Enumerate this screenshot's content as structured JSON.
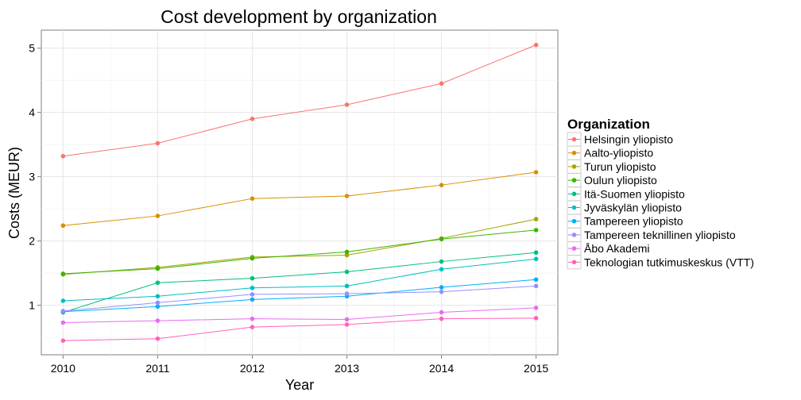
{
  "chart_data": {
    "type": "line",
    "title": "Cost development by organization",
    "xlabel": "Year",
    "ylabel": "Costs (MEUR)",
    "x": [
      2010,
      2011,
      2012,
      2013,
      2014,
      2015
    ],
    "xlim": [
      2009.77,
      2015.23
    ],
    "ylim": [
      0.23,
      5.28
    ],
    "yticks": [
      1,
      2,
      3,
      4,
      5
    ],
    "grid": true,
    "legend_title": "Organization",
    "legend_position": "right",
    "series": [
      {
        "name": "Helsingin yliopisto",
        "color": "#F8766D",
        "values": [
          3.32,
          3.52,
          3.9,
          4.12,
          4.45,
          5.05
        ]
      },
      {
        "name": "Aalto-yliopisto",
        "color": "#D89000",
        "values": [
          2.24,
          2.39,
          2.66,
          2.7,
          2.87,
          3.07
        ]
      },
      {
        "name": "Turun yliopisto",
        "color": "#A3A500",
        "values": [
          1.48,
          1.59,
          1.75,
          1.78,
          2.04,
          2.34
        ]
      },
      {
        "name": "Oulun yliopisto",
        "color": "#39B600",
        "values": [
          1.49,
          1.57,
          1.73,
          1.83,
          2.03,
          2.17
        ]
      },
      {
        "name": "Itä-Suomen yliopisto",
        "color": "#00BF7D",
        "values": [
          0.89,
          1.35,
          1.42,
          1.52,
          1.68,
          1.82
        ]
      },
      {
        "name": "Jyväskylän yliopisto",
        "color": "#00BFC4",
        "values": [
          1.07,
          1.14,
          1.27,
          1.3,
          1.56,
          1.72
        ]
      },
      {
        "name": "Tampereen yliopisto",
        "color": "#00B0F6",
        "values": [
          0.9,
          0.98,
          1.09,
          1.14,
          1.28,
          1.4
        ]
      },
      {
        "name": "Tampereen teknillinen yliopisto",
        "color": "#9590FF",
        "values": [
          0.91,
          1.04,
          1.17,
          1.18,
          1.21,
          1.3
        ]
      },
      {
        "name": "Åbo Akademi",
        "color": "#E76BF3",
        "values": [
          0.73,
          0.76,
          0.79,
          0.78,
          0.89,
          0.96
        ]
      },
      {
        "name": "Teknologian tutkimuskeskus (VTT)",
        "color": "#FF62BC",
        "values": [
          0.45,
          0.48,
          0.66,
          0.7,
          0.79,
          0.8
        ]
      }
    ]
  }
}
